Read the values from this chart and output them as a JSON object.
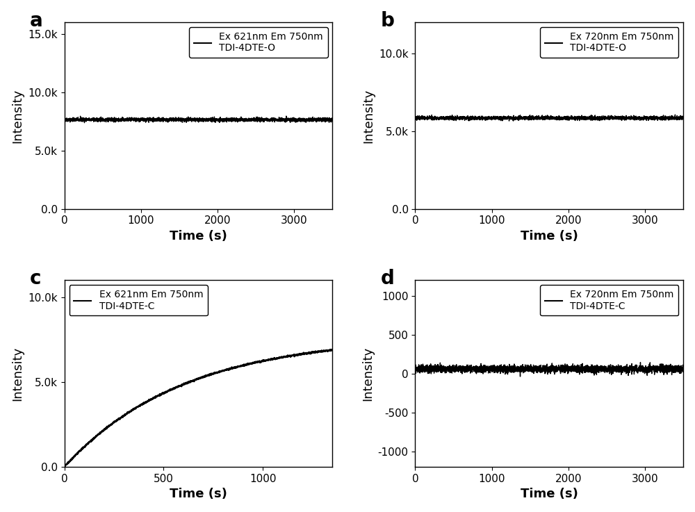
{
  "panel_a": {
    "label": "a",
    "legend_line1": "Ex 621nm Em 750nm",
    "legend_line2": "TDI-4DTE-O",
    "x_start": 0,
    "x_end": 3500,
    "y_mean": 7650,
    "y_noise": 80,
    "ylim": [
      0,
      16000
    ],
    "xlim": [
      0,
      3500
    ],
    "yticks": [
      0.0,
      5000,
      10000,
      15000
    ],
    "ytick_labels": [
      "0.0",
      "5.0k",
      "10.0k",
      "15.0k"
    ],
    "xticks": [
      0,
      1000,
      2000,
      3000
    ],
    "xlabel": "Time (s)",
    "ylabel": "Intensity",
    "n_points": 3500
  },
  "panel_b": {
    "label": "b",
    "legend_line1": "Ex 720nm Em 750nm",
    "legend_line2": "TDI-4DTE-O",
    "x_start": 0,
    "x_end": 3500,
    "y_mean": 5850,
    "y_noise": 60,
    "ylim": [
      0,
      12000
    ],
    "xlim": [
      0,
      3500
    ],
    "yticks": [
      0.0,
      5000,
      10000
    ],
    "ytick_labels": [
      "0.0",
      "5.0k",
      "10.0k"
    ],
    "xticks": [
      0,
      1000,
      2000,
      3000
    ],
    "xlabel": "Time (s)",
    "ylabel": "Intensity",
    "n_points": 3500
  },
  "panel_c": {
    "label": "c",
    "legend_line1": "Ex 621nm Em 750nm",
    "legend_line2": "TDI-4DTE-C",
    "x_start": 0,
    "x_end": 1350,
    "y_max": 7700,
    "tau": 600,
    "ylim": [
      0,
      11000
    ],
    "xlim": [
      0,
      1350
    ],
    "yticks": [
      0.0,
      5000,
      10000
    ],
    "ytick_labels": [
      "0.0",
      "5.0k",
      "10.0k"
    ],
    "xticks": [
      0,
      500,
      1000
    ],
    "xlabel": "Time (s)",
    "ylabel": "Intensity",
    "n_points": 1400
  },
  "panel_d": {
    "label": "d",
    "legend_line1": "Ex 720nm Em 750nm",
    "legend_line2": "TDI-4DTE-C",
    "x_start": 0,
    "x_end": 3500,
    "y_mean": 60,
    "y_noise": 25,
    "ylim": [
      -1200,
      1200
    ],
    "xlim": [
      0,
      3500
    ],
    "yticks": [
      -1000,
      -500,
      0,
      500,
      1000
    ],
    "ytick_labels": [
      "-1000",
      "-500",
      "0",
      "500",
      "1000"
    ],
    "xticks": [
      0,
      1000,
      2000,
      3000
    ],
    "xlabel": "Time (s)",
    "ylabel": "Intensity",
    "n_points": 3500
  },
  "line_color": "#000000",
  "line_width": 1.0,
  "label_fontsize": 20,
  "axis_label_fontsize": 13,
  "tick_fontsize": 11,
  "legend_fontsize": 10,
  "background_color": "#ffffff"
}
